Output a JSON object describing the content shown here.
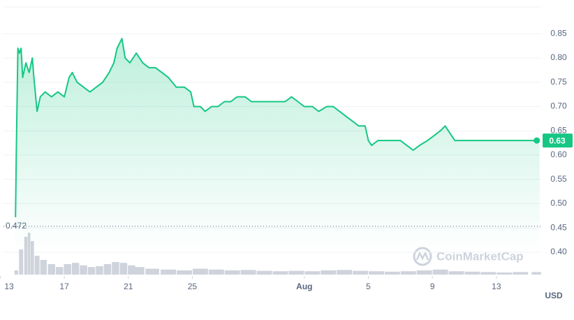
{
  "chart_data": {
    "type": "line",
    "color": "#16c784",
    "x": [
      13.95,
      14.0,
      14.1,
      14.2,
      14.3,
      14.4,
      14.6,
      14.8,
      15.0,
      15.1,
      15.3,
      15.5,
      15.8,
      16.2,
      16.6,
      17.0,
      17.3,
      17.5,
      17.8,
      18.2,
      18.6,
      19.0,
      19.4,
      19.8,
      20.1,
      20.3,
      20.6,
      20.8,
      21.1,
      21.5,
      21.9,
      22.3,
      22.7,
      23.1,
      23.5,
      24.0,
      24.5,
      24.9,
      25.1,
      25.5,
      25.8,
      26.2,
      26.6,
      27.0,
      27.4,
      27.8,
      28.3,
      28.7,
      29.2,
      29.8,
      30.3,
      30.8,
      31.2,
      31.6,
      32.0,
      32.5,
      32.9,
      33.4,
      33.8,
      34.2,
      34.6,
      35.0,
      35.4,
      35.8,
      36.0,
      36.2,
      36.6,
      37.0,
      37.5,
      38.0,
      38.4,
      38.8,
      39.2,
      39.7,
      40.1,
      40.5,
      40.8,
      41.0,
      41.4,
      41.9,
      42.4,
      42.9,
      43.4,
      43.9,
      44.4,
      44.9,
      45.4,
      45.9,
      46.4,
      46.7
    ],
    "values": [
      0.472,
      0.6,
      0.82,
      0.81,
      0.82,
      0.76,
      0.79,
      0.77,
      0.8,
      0.76,
      0.69,
      0.72,
      0.73,
      0.72,
      0.73,
      0.72,
      0.76,
      0.77,
      0.75,
      0.74,
      0.73,
      0.74,
      0.75,
      0.77,
      0.79,
      0.82,
      0.84,
      0.8,
      0.79,
      0.81,
      0.79,
      0.78,
      0.78,
      0.77,
      0.76,
      0.74,
      0.74,
      0.73,
      0.7,
      0.7,
      0.69,
      0.7,
      0.7,
      0.71,
      0.71,
      0.72,
      0.72,
      0.71,
      0.71,
      0.71,
      0.71,
      0.71,
      0.72,
      0.71,
      0.7,
      0.7,
      0.69,
      0.7,
      0.7,
      0.69,
      0.68,
      0.67,
      0.66,
      0.66,
      0.63,
      0.62,
      0.63,
      0.63,
      0.63,
      0.63,
      0.62,
      0.61,
      0.62,
      0.63,
      0.64,
      0.65,
      0.66,
      0.65,
      0.63,
      0.63,
      0.63,
      0.63,
      0.63,
      0.63,
      0.63,
      0.63,
      0.63,
      0.63,
      0.63,
      0.63
    ],
    "volume": {
      "color": "#cfd3dc",
      "x": [
        14.0,
        14.3,
        14.6,
        14.8,
        15.0,
        15.3,
        15.7,
        16.2,
        16.7,
        17.2,
        17.7,
        18.2,
        18.7,
        19.2,
        19.7,
        20.2,
        20.7,
        21.2,
        21.7,
        22.5,
        23.5,
        24.5,
        25.5,
        26.5,
        27.5,
        28.5,
        29.5,
        30.5,
        31.5,
        32.5,
        33.5,
        34.5,
        35.5,
        36.5,
        37.5,
        38.5,
        39.5,
        40.5,
        41.5,
        42.5,
        43.5,
        44.5,
        45.5,
        46.5
      ],
      "values": [
        10,
        60,
        90,
        100,
        80,
        45,
        35,
        25,
        18,
        25,
        28,
        22,
        18,
        20,
        25,
        30,
        28,
        22,
        18,
        14,
        12,
        10,
        14,
        12,
        10,
        11,
        9,
        8,
        9,
        8,
        10,
        11,
        9,
        8,
        7,
        8,
        10,
        12,
        8,
        7,
        6,
        5,
        6,
        6
      ],
      "ylim": [
        0,
        100
      ]
    },
    "xlim": [
      13.2,
      46.8
    ],
    "xticks": [
      13,
      17,
      21,
      25,
      {
        "value": 32,
        "label": "Aug"
      },
      {
        "value": 36,
        "label": "5"
      },
      {
        "value": 40,
        "label": "9"
      },
      {
        "value": 44,
        "label": "13"
      }
    ],
    "ylim": [
      0.351,
      0.905
    ],
    "yticks": [
      {
        "value": 0.4,
        "label": "0.40"
      },
      0.45,
      {
        "value": 0.5,
        "label": "0.50"
      },
      0.55,
      {
        "value": 0.6,
        "label": "0.60"
      },
      0.65,
      {
        "value": 0.7,
        "label": "0.70"
      },
      0.75,
      {
        "value": 0.8,
        "label": "0.80"
      },
      0.85
    ],
    "grid": true,
    "min_value": 0.472,
    "last_value": 0.63,
    "currency": "USD",
    "watermark": "CoinMarketCap"
  }
}
